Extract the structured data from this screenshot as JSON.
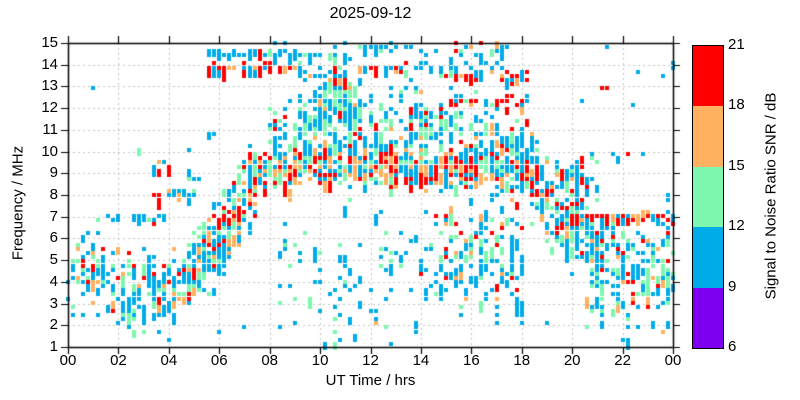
{
  "chart_data": {
    "type": "scatter",
    "title": "2025-09-12",
    "xlabel": "UT Time / hrs",
    "ylabel": "Frequency / MHz",
    "xlim": [
      0,
      24
    ],
    "ylim": [
      1,
      15
    ],
    "grid": true,
    "x_tick_values": [
      0,
      2,
      4,
      6,
      8,
      10,
      12,
      14,
      16,
      18,
      20,
      22,
      24
    ],
    "x_tick_labels": [
      "00",
      "02",
      "04",
      "06",
      "08",
      "10",
      "12",
      "14",
      "16",
      "18",
      "20",
      "22",
      "00"
    ],
    "y_tick_values": [
      1,
      2,
      3,
      4,
      5,
      6,
      7,
      8,
      9,
      10,
      11,
      12,
      13,
      14,
      15
    ],
    "y_tick_labels": [
      "1",
      "2",
      "3",
      "4",
      "5",
      "6",
      "7",
      "8",
      "9",
      "10",
      "11",
      "12",
      "13",
      "14",
      "15"
    ],
    "grid_color": "#c4c4c4",
    "axis_color": "#000000",
    "point_colors": {
      "red": "#FF0000",
      "orange": "#FFB060",
      "green": "#7DF7AE",
      "blue": "#00ACE8",
      "purple": "#7D00F0"
    },
    "colorbar": {
      "label": "Signal to Noise Ratio SNR / dB",
      "tick_values": [
        6,
        9,
        12,
        15,
        18,
        21
      ],
      "range": [
        6,
        21
      ],
      "segments": [
        {
          "from": 18,
          "to": 21,
          "color": "#FF0000"
        },
        {
          "from": 15,
          "to": 18,
          "color": "#FFB060"
        },
        {
          "from": 12,
          "to": 15,
          "color": "#7DF7AE"
        },
        {
          "from": 9,
          "to": 12,
          "color": "#00ACE8"
        },
        {
          "from": 6,
          "to": 9,
          "color": "#7D00F0"
        }
      ]
    },
    "seed": 20250912,
    "bands": [
      {
        "name": "night_trace",
        "t": [
          0,
          5.3
        ],
        "f": [
          [
            0,
            4.7
          ],
          [
            1,
            4.3
          ],
          [
            2,
            3.7
          ],
          [
            3,
            3.4
          ],
          [
            4,
            3.6
          ],
          [
            4.7,
            4.2
          ],
          [
            5.3,
            5.0
          ]
        ],
        "spread": 0.8,
        "count": 235,
        "colors": {
          "blue": 54,
          "green": 22,
          "orange": 12,
          "red": 12
        }
      },
      {
        "name": "sunrise_rise",
        "t": [
          5.0,
          7.4
        ],
        "f": [
          [
            5,
            4.9
          ],
          [
            5.8,
            5.6
          ],
          [
            6.5,
            6.7
          ],
          [
            7.4,
            8.5
          ]
        ],
        "spread": 0.85,
        "count": 250,
        "colors": {
          "blue": 46,
          "green": 24,
          "orange": 15,
          "red": 15
        }
      },
      {
        "name": "rise_red_7mhz",
        "t": [
          6.05,
          6.75
        ],
        "f": [
          [
            6,
            7.0
          ]
        ],
        "spread": 0.18,
        "count": 16,
        "colors": {
          "red": 70,
          "orange": 12,
          "blue": 18
        }
      },
      {
        "name": "day_low_sparse",
        "t": [
          8.3,
          14.8
        ],
        "f": [
          [
            8.3,
            4.5
          ],
          [
            12,
            4.0
          ],
          [
            14.8,
            4.2
          ]
        ],
        "spread": 1.5,
        "count": 85,
        "colors": {
          "blue": 72,
          "green": 20,
          "orange": 5,
          "red": 3
        }
      },
      {
        "name": "afternoon_low",
        "t": [
          14.6,
          18.1
        ],
        "f": [
          [
            14.6,
            5.3
          ],
          [
            16.5,
            5.1
          ],
          [
            18.1,
            4.7
          ]
        ],
        "spread": 1.25,
        "count": 150,
        "colors": {
          "blue": 58,
          "green": 22,
          "orange": 11,
          "red": 9
        }
      },
      {
        "name": "day_cloud",
        "t": [
          8.0,
          18.5
        ],
        "f": [
          [
            8,
            10.2
          ],
          [
            9,
            10.8
          ],
          [
            10,
            11.1
          ],
          [
            11,
            11.5
          ],
          [
            12,
            10.9
          ],
          [
            13,
            10.7
          ],
          [
            14,
            11.1
          ],
          [
            15,
            10.7
          ],
          [
            16,
            10.4
          ],
          [
            17,
            10.1
          ],
          [
            18.5,
            9.9
          ]
        ],
        "spread": 1.0,
        "count": 430,
        "colors": {
          "blue": 56,
          "green": 24,
          "orange": 13,
          "red": 7
        }
      },
      {
        "name": "midmorning_spike",
        "t": [
          9.7,
          11.7
        ],
        "f": [
          [
            9.7,
            11.9
          ],
          [
            10.6,
            12.7
          ],
          [
            11.3,
            12.2
          ]
        ],
        "spread": 0.7,
        "count": 120,
        "colors": {
          "blue": 62,
          "green": 27,
          "orange": 9,
          "red": 2
        }
      },
      {
        "name": "evening_descent",
        "t": [
          18.4,
          21.3
        ],
        "f": [
          [
            18.4,
            8.7
          ],
          [
            19.5,
            7.6
          ],
          [
            20.4,
            6.4
          ],
          [
            21.3,
            5.6
          ]
        ],
        "spread": 1.0,
        "count": 200,
        "colors": {
          "blue": 52,
          "green": 22,
          "orange": 13,
          "red": 13
        }
      },
      {
        "name": "descent_red_8_1",
        "t": [
          18.4,
          19.2
        ],
        "f": [
          [
            18.8,
            8.1
          ]
        ],
        "spread": 0.07,
        "count": 8,
        "colors": {
          "red": 70,
          "orange": 10,
          "blue": 20
        }
      },
      {
        "name": "descent_red_7_55",
        "t": [
          19.8,
          20.5
        ],
        "f": [
          [
            20,
            7.55
          ]
        ],
        "spread": 0.07,
        "count": 8,
        "colors": {
          "red": 60,
          "orange": 15,
          "blue": 25
        }
      },
      {
        "name": "late_evening_low",
        "t": [
          20.6,
          24
        ],
        "f": [
          [
            20.6,
            4.9
          ],
          [
            22,
            4.4
          ],
          [
            23.2,
            4.6
          ],
          [
            24,
            5.2
          ]
        ],
        "spread": 1.25,
        "count": 185,
        "colors": {
          "blue": 58,
          "green": 26,
          "orange": 9,
          "red": 7
        }
      },
      {
        "name": "background_strays",
        "t": [
          0,
          24
        ],
        "f": [
          [
            12,
            8
          ]
        ],
        "uniform_f": [
          1.3,
          14.4
        ],
        "spread": 0,
        "count": 40,
        "colors": {
          "blue": 85,
          "green": 15
        }
      },
      {
        "name": "evening_9mhz",
        "t": [
          19.3,
          21.0
        ],
        "f": [
          [
            20,
            9.05
          ]
        ],
        "spread": 0.45,
        "count": 30,
        "colors": {
          "blue": 62,
          "green": 18,
          "orange": 8,
          "red": 12
        }
      },
      {
        "name": "predawn_9_3_red",
        "t": [
          3.3,
          4.0
        ],
        "f": [
          [
            3.6,
            9.35
          ]
        ],
        "spread": 0.18,
        "count": 13,
        "colors": {
          "red": 80,
          "orange": 10,
          "blue": 10
        }
      },
      {
        "name": "predawn_7_8_red",
        "t": [
          3.35,
          3.75
        ],
        "f": [
          [
            3.5,
            7.85
          ]
        ],
        "spread": 0.12,
        "count": 7,
        "colors": {
          "red": 85,
          "blue": 15
        }
      },
      {
        "name": "predawn_7_blue",
        "t": [
          1.0,
          4.2
        ],
        "f": [
          [
            2,
            6.95
          ]
        ],
        "spread": 0.05,
        "count": 16,
        "colors": {
          "blue": 90,
          "green": 10
        }
      },
      {
        "name": "predawn_8_1",
        "t": [
          3.9,
          5.3
        ],
        "f": [
          [
            4.5,
            8.1
          ]
        ],
        "spread": 0.09,
        "count": 15,
        "colors": {
          "blue": 65,
          "orange": 20,
          "green": 15
        }
      },
      {
        "name": "main_band_9_3",
        "t": [
          7.2,
          18.7
        ],
        "f": [
          [
            7.2,
            8.8
          ],
          [
            8,
            9.15
          ],
          [
            10,
            9.3
          ],
          [
            14,
            9.25
          ],
          [
            17,
            9.3
          ],
          [
            18.7,
            9.0
          ]
        ],
        "spread": 0.42,
        "count": 640,
        "colors": {
          "red": 33,
          "orange": 20,
          "green": 17,
          "blue": 30
        }
      },
      {
        "name": "line_7_evening",
        "t": [
          19.6,
          24
        ],
        "f": [
          [
            20,
            7.0
          ]
        ],
        "spread": 0.06,
        "count": 75,
        "colors": {
          "red": 50,
          "orange": 12,
          "blue": 30,
          "green": 8
        }
      },
      {
        "name": "line_13_9_morning",
        "t": [
          5.6,
          9.3
        ],
        "f": [
          [
            7,
            13.9
          ]
        ],
        "spread": 0.07,
        "count": 48,
        "colors": {
          "red": 45,
          "orange": 18,
          "blue": 32,
          "green": 5
        }
      },
      {
        "name": "line_14_5_morning",
        "t": [
          5.4,
          9.2
        ],
        "f": [
          [
            7,
            14.5
          ]
        ],
        "spread": 0.09,
        "count": 40,
        "colors": {
          "blue": 78,
          "green": 12,
          "orange": 6,
          "red": 4
        }
      },
      {
        "name": "line_13_9_midday",
        "t": [
          11.5,
          14.1
        ],
        "f": [
          [
            12,
            13.87
          ]
        ],
        "spread": 0.07,
        "count": 26,
        "colors": {
          "red": 40,
          "blue": 35,
          "orange": 20,
          "green": 5
        }
      },
      {
        "name": "line_13_5_midday",
        "t": [
          9.0,
          11.2
        ],
        "f": [
          [
            10,
            13.5
          ]
        ],
        "spread": 0.08,
        "count": 16,
        "colors": {
          "blue": 55,
          "orange": 25,
          "red": 20
        }
      },
      {
        "name": "line_14_4_blue",
        "t": [
          9.0,
          11.3
        ],
        "f": [
          [
            10,
            14.4
          ]
        ],
        "spread": 0.1,
        "count": 18,
        "colors": {
          "blue": 70,
          "green": 30
        }
      },
      {
        "name": "top_15_dashes",
        "t": [
          11.2,
          13.4
        ],
        "f": [
          [
            12,
            14.82
          ]
        ],
        "spread": 0.08,
        "count": 14,
        "colors": {
          "blue": 80,
          "green": 20
        }
      },
      {
        "name": "high_sporadic_right",
        "t": [
          13.2,
          17.6
        ],
        "f": [
          [
            15,
            14.15
          ]
        ],
        "spread": 0.35,
        "count": 26,
        "colors": {
          "blue": 70,
          "green": 15,
          "orange": 8,
          "red": 7
        }
      },
      {
        "name": "line_13_4_afternoon",
        "t": [
          14.8,
          18.2
        ],
        "f": [
          [
            16,
            13.45
          ]
        ],
        "spread": 0.12,
        "count": 30,
        "colors": {
          "red": 42,
          "orange": 20,
          "blue": 33,
          "green": 5
        }
      },
      {
        "name": "line_12_3_afternoon",
        "t": [
          15.0,
          18.2
        ],
        "f": [
          [
            16,
            12.35
          ]
        ],
        "spread": 0.12,
        "count": 24,
        "colors": {
          "red": 50,
          "orange": 12,
          "blue": 33,
          "green": 5
        }
      },
      {
        "name": "top_14_8_cluster",
        "t": [
          15.4,
          17.4
        ],
        "f": [
          [
            16,
            14.78
          ]
        ],
        "spread": 0.12,
        "count": 15,
        "colors": {
          "blue": 45,
          "green": 20,
          "orange": 22,
          "red": 13
        }
      }
    ],
    "extra_points": [
      [
        0.3,
        2.45,
        "blue"
      ],
      [
        0.55,
        2.4,
        "blue"
      ],
      [
        0.75,
        6.3,
        "blue"
      ],
      [
        1.15,
        6.35,
        "blue"
      ],
      [
        3.9,
        1.35,
        "blue"
      ],
      [
        10.85,
        1.4,
        "blue"
      ],
      [
        4.85,
        8.8,
        "green"
      ],
      [
        4.95,
        8.78,
        "blue"
      ],
      [
        5.2,
        8.82,
        "blue"
      ],
      [
        14.6,
        7.0,
        "red"
      ],
      [
        15.0,
        7.05,
        "red"
      ],
      [
        15.3,
        6.6,
        "red"
      ],
      [
        14.9,
        6.62,
        "orange"
      ],
      [
        20.3,
        12.3,
        "blue"
      ],
      [
        22.4,
        12.1,
        "blue"
      ],
      [
        21.1,
        13.0,
        "red"
      ],
      [
        21.3,
        13.0,
        "red"
      ],
      [
        22.6,
        13.6,
        "blue"
      ],
      [
        23.6,
        13.4,
        "blue"
      ],
      [
        13.6,
        14.9,
        "blue"
      ],
      [
        15.3,
        15.0,
        "red"
      ],
      [
        16.2,
        14.5,
        "blue"
      ],
      [
        21.3,
        14.9,
        "blue"
      ],
      [
        20.9,
        9.9,
        "blue"
      ],
      [
        21.6,
        9.85,
        "blue"
      ],
      [
        22.1,
        9.8,
        "red"
      ],
      [
        22.8,
        9.9,
        "blue"
      ],
      [
        7.0,
        1.9,
        "blue"
      ],
      [
        9.0,
        2.05,
        "blue"
      ],
      [
        3.3,
        6.8,
        "green"
      ],
      [
        3.35,
        6.6,
        "red"
      ],
      [
        23.8,
        5.0,
        "red"
      ],
      [
        23.85,
        4.6,
        "green"
      ],
      [
        19.0,
        2.0,
        "blue"
      ],
      [
        20.6,
        1.95,
        "green"
      ],
      [
        23.9,
        2.1,
        "blue"
      ],
      [
        23.9,
        6.2,
        "red"
      ],
      [
        23.9,
        5.8,
        "green"
      ],
      [
        23.95,
        5.4,
        "green"
      ],
      [
        23.9,
        6.5,
        "blue"
      ],
      [
        10.6,
        14.9,
        "blue"
      ],
      [
        11.0,
        14.95,
        "blue"
      ],
      [
        11.5,
        14.85,
        "green"
      ],
      [
        8.2,
        15.0,
        "blue"
      ],
      [
        8.6,
        15.0,
        "blue"
      ]
    ]
  }
}
